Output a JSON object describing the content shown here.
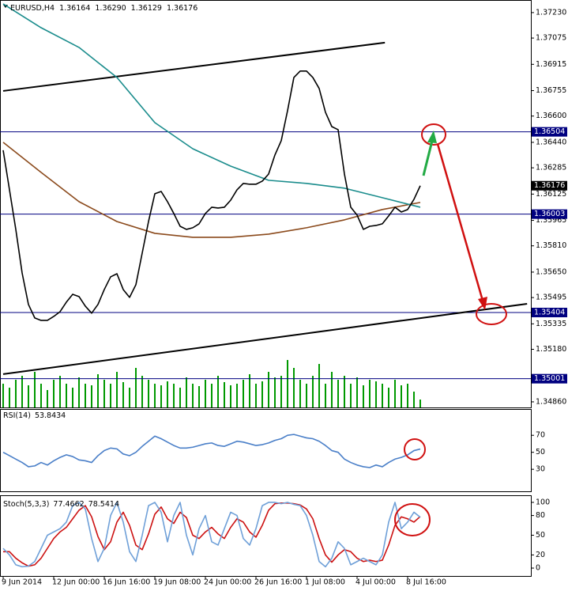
{
  "chart_data": [
    {
      "type": "line",
      "title": "EURUSD,H4",
      "ohlc": [
        1.36164,
        {
          "value": 1.3629,
          "label": "1.36290"
        },
        1.36129,
        1.36176
      ],
      "xlim": [
        -0.5,
        83.5
      ],
      "ylim": [
        1.34826,
        1.37297
      ],
      "yticks": [
        {
          "value": 1.3723,
          "label": "1.37230"
        },
        1.37075,
        1.36915,
        1.36755,
        {
          "value": 1.366,
          "label": "1.36600"
        },
        {
          "value": 1.3644,
          "label": "1.36440"
        },
        1.36285,
        1.36125,
        1.35965,
        {
          "value": 1.3581,
          "label": "1.35810"
        },
        {
          "value": 1.3565,
          "label": "1.35650"
        },
        1.35495,
        1.35335,
        {
          "value": 1.3518,
          "label": "1.35180"
        },
        {
          "value": 1.3486,
          "label": "1.34860"
        }
      ],
      "grid": false,
      "hlines": [
        1.36504,
        1.36003,
        1.35404,
        1.35001
      ],
      "hline_color": "#000080",
      "series": [
        {
          "name": "Close",
          "color": "#000000",
          "values": [
            1.36392,
            1.36151,
            1.3591,
            1.35645,
            1.35453,
            1.35371,
            1.35356,
            1.35356,
            1.3538,
            1.35409,
            1.35467,
            1.35515,
            1.35501,
            1.35443,
            1.354,
            1.35453,
            1.35544,
            1.35621,
            1.3564,
            1.35544,
            1.35496,
            1.35573,
            1.35766,
            1.35958,
            1.36127,
            1.36141,
            1.36079,
            1.36007,
            1.35929,
            1.3591,
            1.3592,
            1.35944,
            1.36007,
            1.36045,
            1.3604,
            1.36045,
            1.36088,
            1.36151,
            1.3619,
            1.36185,
            1.36185,
            1.36204,
            1.36247,
            1.36363,
            1.3645,
            1.36633,
            1.36835,
            1.36874,
            1.36874,
            1.36835,
            1.36768,
            1.36623,
            1.36536,
            1.36517,
            1.36247,
            1.36045,
            1.35997,
            1.3591,
            1.35929,
            1.35934,
            1.35944,
            1.35992,
            1.36045,
            1.36016,
            1.36031,
            1.36093,
            1.36176
          ]
        },
        {
          "name": "MA slow",
          "color": "#1a8c8c",
          "x": [
            0,
            6,
            12,
            18,
            24,
            30,
            36,
            42,
            48,
            54,
            60,
            66
          ],
          "values": [
            1.37283,
            1.37138,
            1.37018,
            1.36835,
            1.3656,
            1.36401,
            1.36295,
            1.36209,
            1.3619,
            1.36161,
            1.36103,
            1.36045
          ]
        },
        {
          "name": "MA medium",
          "color": "#8b4a1c",
          "x": [
            0,
            6,
            12,
            18,
            24,
            30,
            36,
            42,
            48,
            54,
            60,
            66
          ],
          "values": [
            1.3644,
            1.36257,
            1.36079,
            1.35958,
            1.35886,
            1.35862,
            1.35862,
            1.35881,
            1.3592,
            1.35968,
            1.36031,
            1.36074
          ]
        }
      ],
      "trendlines": [
        {
          "x": [
            0,
            60.4
          ],
          "values": [
            1.36753,
            1.37047
          ]
        },
        {
          "x": [
            0,
            82.9
          ],
          "values": [
            1.35029,
            1.35457
          ]
        }
      ],
      "volume": {
        "color": "#009900",
        "values": [
          30,
          25,
          35,
          40,
          28,
          45,
          30,
          22,
          35,
          40,
          30,
          25,
          38,
          30,
          28,
          42,
          35,
          30,
          45,
          32,
          25,
          50,
          40,
          35,
          30,
          28,
          33,
          30,
          25,
          38,
          30,
          27,
          35,
          30,
          40,
          32,
          28,
          30,
          35,
          42,
          30,
          33,
          45,
          38,
          40,
          60,
          50,
          35,
          30,
          40,
          55,
          30,
          45,
          35,
          40,
          30,
          38,
          28,
          35,
          33,
          30,
          25,
          35,
          28,
          30,
          20,
          10
        ]
      }
    },
    {
      "type": "line",
      "title": "RSI(14)",
      "xlim": [
        -0.5,
        83.5
      ],
      "ylim": [
        5,
        100
      ],
      "yticks": [
        70,
        50,
        30
      ],
      "series": [
        {
          "name": "RSI",
          "color": "#4a7fc8",
          "values": [
            50,
            46,
            42,
            38,
            33,
            34,
            38,
            35,
            40,
            44,
            47,
            45,
            41,
            40,
            38,
            46,
            52,
            55,
            54,
            48,
            46,
            50,
            57,
            63,
            69,
            66,
            62,
            58,
            55,
            55,
            56,
            58,
            60,
            61,
            58,
            57,
            60,
            63,
            62,
            60,
            58,
            59,
            61,
            64,
            66,
            70,
            71,
            69,
            67,
            66,
            63,
            58,
            52,
            50,
            42,
            38,
            35,
            33,
            32,
            35,
            33,
            38,
            42,
            44,
            47,
            52,
            53.8434
          ]
        }
      ]
    },
    {
      "type": "line",
      "title": "Stoch(5,3,3)",
      "xlim": [
        -0.5,
        83.5
      ],
      "ylim": [
        -12,
        106
      ],
      "yticks": [
        100,
        80,
        50,
        20,
        0
      ],
      "categories": [
        "9 Jun 2014",
        null,
        null,
        null,
        null,
        null,
        null,
        null,
        "12 Jun 00:00",
        null,
        null,
        null,
        null,
        null,
        null,
        null,
        "16 Jun 16:00",
        null,
        null,
        null,
        null,
        null,
        null,
        null,
        "19 Jun 08:00",
        null,
        null,
        null,
        null,
        null,
        null,
        null,
        "24 Jun 00:00",
        null,
        null,
        null,
        null,
        null,
        null,
        null,
        "26 Jun 16:00",
        null,
        null,
        null,
        null,
        null,
        null,
        null,
        "1 Jul 08:00",
        null,
        null,
        null,
        null,
        null,
        null,
        null,
        "4 Jul 00:00",
        null,
        null,
        null,
        null,
        null,
        null,
        null,
        "8 Jul 16:00",
        null,
        null
      ],
      "series": [
        {
          "name": "Main",
          "color": "#6fa0d8",
          "values": [
            30,
            20,
            5,
            2,
            3,
            10,
            30,
            50,
            55,
            60,
            70,
            95,
            100,
            90,
            45,
            10,
            30,
            80,
            100,
            70,
            25,
            10,
            50,
            95,
            100,
            85,
            40,
            80,
            100,
            50,
            20,
            60,
            80,
            40,
            35,
            60,
            85,
            80,
            45,
            35,
            60,
            95,
            100,
            100,
            98,
            100,
            97,
            95,
            80,
            50,
            10,
            2,
            15,
            40,
            30,
            5,
            10,
            15,
            10,
            5,
            20,
            70,
            100,
            60,
            70,
            85,
            77.4662
          ]
        },
        {
          "name": "Signal",
          "color": "#cc1111",
          "values": [
            25,
            25,
            15,
            8,
            3,
            5,
            15,
            30,
            45,
            55,
            62,
            75,
            88,
            95,
            78,
            48,
            28,
            40,
            70,
            85,
            65,
            35,
            28,
            52,
            82,
            93,
            75,
            68,
            85,
            77,
            50,
            45,
            55,
            62,
            52,
            45,
            62,
            75,
            70,
            55,
            47,
            65,
            88,
            98,
            99,
            99,
            98,
            96,
            90,
            75,
            45,
            20,
            9,
            20,
            28,
            25,
            15,
            10,
            12,
            10,
            12,
            35,
            65,
            78,
            75,
            70,
            78.5414
          ]
        }
      ]
    }
  ]
}
